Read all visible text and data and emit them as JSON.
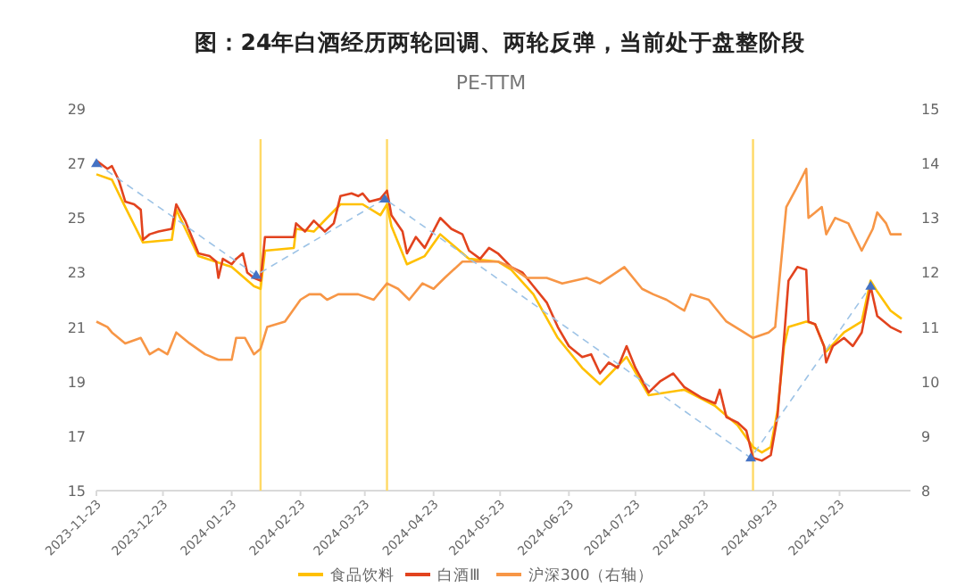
{
  "chart_data": {
    "type": "line",
    "title": "图：24年白酒经历两轮回调、两轮反弹，当前处于盘整阶段",
    "subtitle": "PE-TTM",
    "xlim": [
      "2023-11-23",
      "2024-11-24"
    ],
    "xticks": [
      "2023-11-23",
      "2023-12-23",
      "2024-01-23",
      "2024-02-23",
      "2024-03-23",
      "2024-04-23",
      "2024-05-23",
      "2024-06-23",
      "2024-07-23",
      "2024-08-23",
      "2024-09-23",
      "2024-10-23"
    ],
    "ylim": [
      15,
      29
    ],
    "yticks": [
      15,
      17,
      19,
      21,
      23,
      25,
      27,
      29
    ],
    "y2lim": [
      8,
      15
    ],
    "y2ticks": [
      8,
      9,
      10,
      11,
      12,
      13,
      14,
      15
    ],
    "legend": "bottom",
    "ref_lines": [
      {
        "axis": "x",
        "value": "2024-02-05",
        "color": "#ffd966"
      },
      {
        "axis": "x",
        "value": "2024-04-02",
        "color": "#ffd966"
      },
      {
        "axis": "x",
        "value": "2024-09-14",
        "color": "#ffd966"
      }
    ],
    "series": [
      {
        "name": "食品饮料",
        "color": "#ffc000",
        "x": [
          "2023-11-23",
          "2023-11-30",
          "2023-12-06",
          "2023-12-14",
          "2023-12-27",
          "2023-12-29",
          "2024-01-08",
          "2024-01-23",
          "2024-02-02",
          "2024-02-05",
          "2024-02-07",
          "2024-02-20",
          "2024-02-21",
          "2024-02-29",
          "2024-03-12",
          "2024-03-22",
          "2024-03-30",
          "2024-04-02",
          "2024-04-04",
          "2024-04-11",
          "2024-04-19",
          "2024-04-26",
          "2024-05-09",
          "2024-05-22",
          "2024-05-28",
          "2024-06-07",
          "2024-06-18",
          "2024-06-29",
          "2024-07-07",
          "2024-07-19",
          "2024-07-29",
          "2024-08-14",
          "2024-08-28",
          "2024-09-07",
          "2024-09-14",
          "2024-09-18",
          "2024-09-22",
          "2024-09-25",
          "2024-09-28",
          "2024-09-30",
          "2024-10-08",
          "2024-10-12",
          "2024-10-17",
          "2024-10-25",
          "2024-11-02",
          "2024-11-06",
          "2024-11-09",
          "2024-11-15",
          "2024-11-20"
        ],
        "values": [
          26.6,
          26.4,
          25.4,
          24.1,
          24.2,
          25.3,
          23.6,
          23.2,
          22.5,
          22.4,
          23.8,
          23.9,
          24.6,
          24.5,
          25.5,
          25.5,
          25.1,
          25.5,
          24.7,
          23.3,
          23.6,
          24.4,
          23.5,
          23.4,
          23.1,
          22.2,
          20.6,
          19.5,
          18.9,
          19.9,
          18.5,
          18.7,
          18.1,
          17.4,
          16.6,
          16.4,
          16.6,
          17.9,
          20.3,
          21.0,
          21.2,
          21.1,
          20.1,
          20.8,
          21.2,
          22.7,
          22.3,
          21.6,
          21.3
        ]
      },
      {
        "name": "白酒Ⅲ",
        "color": "#e2431e",
        "x": [
          "2023-11-23",
          "2023-11-28",
          "2023-11-30",
          "2023-12-03",
          "2023-12-06",
          "2023-12-10",
          "2023-12-13",
          "2023-12-14",
          "2023-12-17",
          "2023-12-21",
          "2023-12-27",
          "2023-12-29",
          "2024-01-02",
          "2024-01-04",
          "2024-01-08",
          "2024-01-13",
          "2024-01-16",
          "2024-01-17",
          "2024-01-19",
          "2024-01-23",
          "2024-01-25",
          "2024-01-28",
          "2024-01-30",
          "2024-02-02",
          "2024-02-05",
          "2024-02-07",
          "2024-02-13",
          "2024-02-20",
          "2024-02-21",
          "2024-02-25",
          "2024-02-29",
          "2024-03-05",
          "2024-03-09",
          "2024-03-12",
          "2024-03-17",
          "2024-03-20",
          "2024-03-22",
          "2024-03-25",
          "2024-03-30",
          "2024-04-02",
          "2024-04-04",
          "2024-04-09",
          "2024-04-11",
          "2024-04-15",
          "2024-04-19",
          "2024-04-26",
          "2024-05-01",
          "2024-05-06",
          "2024-05-09",
          "2024-05-14",
          "2024-05-18",
          "2024-05-22",
          "2024-05-28",
          "2024-06-02",
          "2024-06-07",
          "2024-06-13",
          "2024-06-18",
          "2024-06-23",
          "2024-06-29",
          "2024-07-03",
          "2024-07-07",
          "2024-07-11",
          "2024-07-15",
          "2024-07-19",
          "2024-07-23",
          "2024-07-29",
          "2024-08-03",
          "2024-08-09",
          "2024-08-14",
          "2024-08-22",
          "2024-08-28",
          "2024-08-30",
          "2024-09-02",
          "2024-09-07",
          "2024-09-11",
          "2024-09-14",
          "2024-09-18",
          "2024-09-22",
          "2024-09-25",
          "2024-09-28",
          "2024-09-30",
          "2024-10-04",
          "2024-10-08",
          "2024-10-09",
          "2024-10-12",
          "2024-10-16",
          "2024-10-17",
          "2024-10-20",
          "2024-10-25",
          "2024-10-29",
          "2024-11-02",
          "2024-11-06",
          "2024-11-09",
          "2024-11-15",
          "2024-11-20"
        ],
        "values": [
          27.1,
          26.8,
          26.9,
          26.4,
          25.6,
          25.5,
          25.3,
          24.2,
          24.4,
          24.5,
          24.6,
          25.5,
          24.9,
          24.5,
          23.7,
          23.6,
          23.4,
          22.8,
          23.5,
          23.3,
          23.5,
          23.7,
          23.0,
          22.8,
          22.7,
          24.3,
          24.3,
          24.3,
          24.8,
          24.5,
          24.9,
          24.5,
          24.8,
          25.8,
          25.9,
          25.8,
          25.9,
          25.6,
          25.7,
          26.0,
          25.1,
          24.5,
          23.7,
          24.3,
          23.9,
          25.0,
          24.6,
          24.4,
          23.8,
          23.5,
          23.9,
          23.7,
          23.2,
          23.0,
          22.5,
          21.9,
          21.0,
          20.3,
          19.9,
          20.0,
          19.3,
          19.7,
          19.5,
          20.3,
          19.5,
          18.6,
          19.0,
          19.3,
          18.8,
          18.4,
          18.2,
          18.7,
          17.7,
          17.5,
          17.2,
          16.2,
          16.1,
          16.3,
          17.7,
          20.6,
          22.7,
          23.2,
          23.1,
          21.2,
          21.1,
          20.3,
          19.7,
          20.3,
          20.6,
          20.3,
          20.8,
          22.5,
          21.4,
          21.0,
          20.8
        ]
      },
      {
        "name": "沪深300（右轴）",
        "color": "#f79646",
        "axis": "y2",
        "x": [
          "2023-11-23",
          "2023-11-28",
          "2023-11-30",
          "2023-12-06",
          "2023-12-13",
          "2023-12-17",
          "2023-12-21",
          "2023-12-25",
          "2023-12-29",
          "2024-01-04",
          "2024-01-11",
          "2024-01-17",
          "2024-01-23",
          "2024-01-25",
          "2024-01-29",
          "2024-02-02",
          "2024-02-05",
          "2024-02-08",
          "2024-02-16",
          "2024-02-23",
          "2024-02-27",
          "2024-03-03",
          "2024-03-06",
          "2024-03-11",
          "2024-03-20",
          "2024-03-27",
          "2024-04-02",
          "2024-04-07",
          "2024-04-12",
          "2024-04-18",
          "2024-04-23",
          "2024-04-28",
          "2024-05-06",
          "2024-05-14",
          "2024-05-22",
          "2024-05-28",
          "2024-06-04",
          "2024-06-13",
          "2024-06-20",
          "2024-07-01",
          "2024-07-07",
          "2024-07-18",
          "2024-07-26",
          "2024-07-31",
          "2024-08-06",
          "2024-08-14",
          "2024-08-17",
          "2024-08-25",
          "2024-09-02",
          "2024-09-10",
          "2024-09-14",
          "2024-09-21",
          "2024-09-24",
          "2024-09-26",
          "2024-09-29",
          "2024-10-03",
          "2024-10-08",
          "2024-10-09",
          "2024-10-12",
          "2024-10-15",
          "2024-10-17",
          "2024-10-21",
          "2024-10-27",
          "2024-11-02",
          "2024-11-07",
          "2024-11-09",
          "2024-11-13",
          "2024-11-15",
          "2024-11-20"
        ],
        "values": [
          11.1,
          11.0,
          10.9,
          10.7,
          10.8,
          10.5,
          10.6,
          10.5,
          10.9,
          10.7,
          10.5,
          10.4,
          10.4,
          10.8,
          10.8,
          10.5,
          10.6,
          11.0,
          11.1,
          11.5,
          11.6,
          11.6,
          11.5,
          11.6,
          11.6,
          11.5,
          11.8,
          11.7,
          11.5,
          11.8,
          11.7,
          11.9,
          12.2,
          12.2,
          12.2,
          12.1,
          11.9,
          11.9,
          11.8,
          11.9,
          11.8,
          12.1,
          11.7,
          11.6,
          11.5,
          11.3,
          11.6,
          11.5,
          11.1,
          10.9,
          10.8,
          10.9,
          11.0,
          11.9,
          13.2,
          13.5,
          13.9,
          13.0,
          13.1,
          13.2,
          12.7,
          13.0,
          12.9,
          12.4,
          12.8,
          13.1,
          12.9,
          12.7,
          12.7
        ]
      },
      {
        "type": "line",
        "color": "#9dc3e6",
        "line_style": "dashed",
        "marker": "triangle",
        "x": [
          "2023-11-23",
          "2024-02-03",
          "2024-04-01",
          "2024-09-13",
          "2024-11-06"
        ],
        "values": [
          27.0,
          22.9,
          25.7,
          16.2,
          22.5
        ]
      }
    ]
  }
}
